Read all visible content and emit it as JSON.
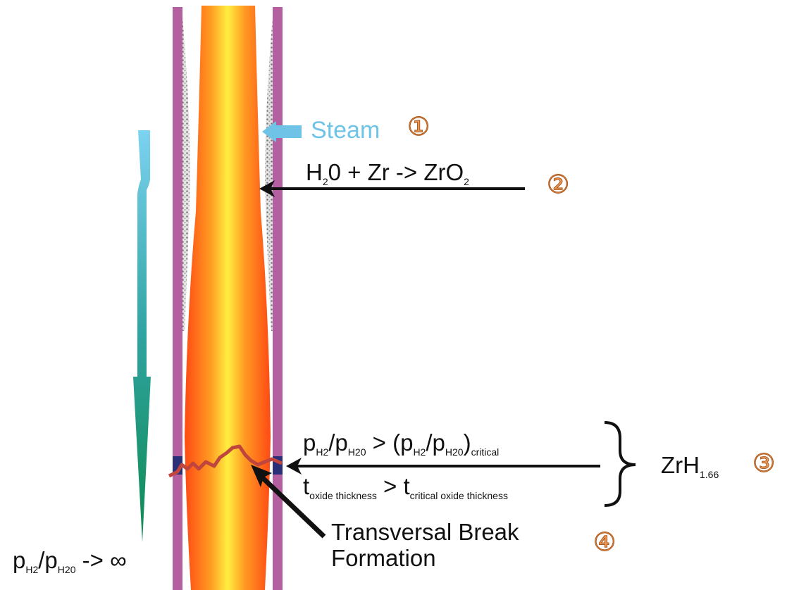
{
  "steam": {
    "label": "Steam",
    "number": "①"
  },
  "reaction": {
    "reactant": "H",
    "reactant_sub": "2",
    "rest": "0 + Zr -> ZrO",
    "product_sub": "2",
    "number": "②"
  },
  "conditions": {
    "line1": {
      "p": "p",
      "h2": "H2",
      "slash": "/p",
      "h2o": "H20",
      "mid": " > (p",
      "h2b": "H2",
      "slash2": "/p",
      "h2ob": "H20",
      "close": ")",
      "crit": "critical"
    },
    "line2": {
      "t": "t",
      "sub1": "oxide thickness",
      "mid": " > t",
      "sub2": "critical oxide thickness"
    },
    "result": "ZrH",
    "result_sub": "1.66",
    "number": "③"
  },
  "break": {
    "line1": "Transversal Break",
    "line2": "Formation",
    "number": "④"
  },
  "ratio": {
    "p": "p",
    "h2": "H2",
    "slash": "/p",
    "h2o": "H20",
    "tail": " -> ∞"
  },
  "colors": {
    "cladding": "#b45fa0",
    "fuel_edge": "#ff5a1a",
    "fuel_center": "#ffe640",
    "steam": "#6ec3e6",
    "number": "#e39a5c"
  }
}
